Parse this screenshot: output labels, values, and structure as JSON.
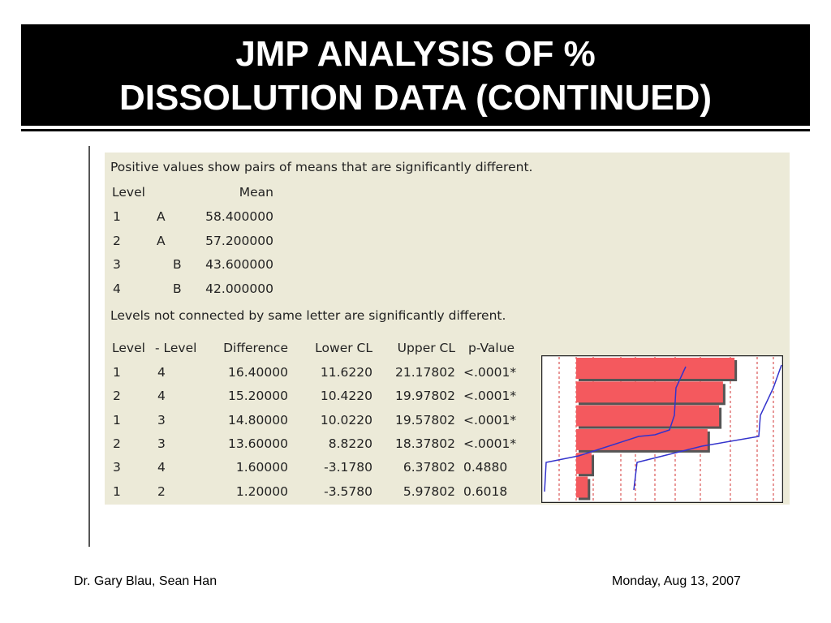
{
  "slide": {
    "title_line1": "JMP ANALYSIS OF %",
    "title_line2": "DISSOLUTION DATA (CONTINUED)"
  },
  "jmp": {
    "intro_note": "Positive values show pairs of means that are significantly different.",
    "means_header": {
      "level": "Level",
      "mean": "Mean"
    },
    "means_rows": [
      {
        "level": "1",
        "letter": "A",
        "letter_col": 0,
        "mean": "58.400000"
      },
      {
        "level": "2",
        "letter": "A",
        "letter_col": 0,
        "mean": "57.200000"
      },
      {
        "level": "3",
        "letter": "B",
        "letter_col": 1,
        "mean": "43.600000"
      },
      {
        "level": "4",
        "letter": "B",
        "letter_col": 1,
        "mean": "42.000000"
      }
    ],
    "letters_note": "Levels not connected by same letter are significantly different.",
    "diff_header": {
      "level": "Level",
      "minus_level": "- Level",
      "difference": "Difference",
      "lower_cl": "Lower CL",
      "upper_cl": "Upper CL",
      "p_value": "p-Value"
    },
    "diff_rows": [
      {
        "level": "1",
        "minus_level": "4",
        "difference": "16.40000",
        "lower_cl": "11.6220",
        "upper_cl": "21.17802",
        "p_value": "<.0001*"
      },
      {
        "level": "2",
        "minus_level": "4",
        "difference": "15.20000",
        "lower_cl": "10.4220",
        "upper_cl": "19.97802",
        "p_value": "<.0001*"
      },
      {
        "level": "1",
        "minus_level": "3",
        "difference": "14.80000",
        "lower_cl": "10.0220",
        "upper_cl": "19.57802",
        "p_value": "<.0001*"
      },
      {
        "level": "2",
        "minus_level": "3",
        "difference": "13.60000",
        "lower_cl": "8.8220",
        "upper_cl": "18.37802",
        "p_value": "<.0001*"
      },
      {
        "level": "3",
        "minus_level": "4",
        "difference": "1.60000",
        "lower_cl": "-3.1780",
        "upper_cl": "6.37802",
        "p_value": "0.4880"
      },
      {
        "level": "1",
        "minus_level": "2",
        "difference": "1.20000",
        "lower_cl": "-3.5780",
        "upper_cl": "5.97802",
        "p_value": "0.6018"
      }
    ],
    "colors": {
      "panel_bg": "#ecead8",
      "bar_fill": "#f4595e",
      "bar_shadow": "#555555",
      "ref_line": "#d33333",
      "curve": "#3333cc"
    }
  },
  "footer": {
    "authors": "Dr. Gary Blau, Sean Han",
    "date": "Monday, Aug 13, 2007"
  }
}
